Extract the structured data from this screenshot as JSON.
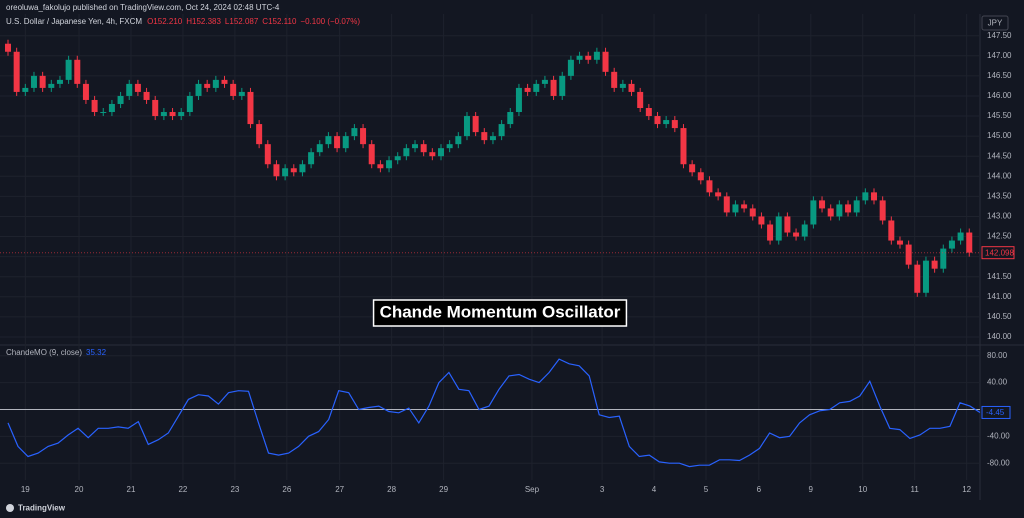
{
  "publisher_line": "oreoluwa_fakolujo published on TradingView.com, Oct 24, 2024 02:48 UTC-4",
  "currency": "JPY",
  "annotation": "Chande Momentum Oscillator",
  "brand": "TradingView",
  "chart_data": [
    {
      "type": "candlestick",
      "title": "U.S. Dollar / Japanese Yen, 4h, FXCM",
      "header_values": [
        "O152.210",
        "H152.383",
        "L152.087",
        "C152.110",
        "−0.100 (−0.07%)"
      ],
      "up_color": "#089981",
      "down_color": "#f23645",
      "open": [
        147.3,
        147.1,
        146.1,
        146.2,
        146.5,
        146.2,
        146.3,
        146.4,
        146.9,
        146.3,
        145.9,
        145.6,
        145.6,
        145.8,
        146.0,
        146.3,
        146.1,
        145.9,
        145.5,
        145.6,
        145.5,
        145.6,
        146.0,
        146.3,
        146.2,
        146.4,
        146.3,
        146.0,
        146.1,
        145.3,
        144.8,
        144.3,
        144.0,
        144.2,
        144.1,
        144.3,
        144.6,
        144.8,
        145.0,
        144.7,
        145.0,
        145.2,
        144.8,
        144.3,
        144.2,
        144.4,
        144.5,
        144.7,
        144.8,
        144.6,
        144.5,
        144.7,
        144.8,
        145.0,
        145.5,
        145.1,
        144.9,
        145.0,
        145.3,
        145.6,
        146.2,
        146.1,
        146.3,
        146.4,
        146.0,
        146.5,
        146.9,
        147.0,
        146.9,
        147.1,
        146.6,
        146.2,
        146.3,
        146.1,
        145.7,
        145.5,
        145.3,
        145.4,
        145.2,
        144.3,
        144.1,
        143.9,
        143.6,
        143.5,
        143.1,
        143.3,
        143.2,
        143.0,
        142.8,
        142.4,
        143.0,
        142.6,
        142.5,
        142.8,
        143.4,
        143.2,
        143.0,
        143.3,
        143.1,
        143.4,
        143.6,
        143.4,
        142.9,
        142.4,
        142.3,
        141.8,
        141.1,
        141.9,
        141.7,
        142.2,
        142.4,
        142.6
      ],
      "high": [
        147.4,
        147.2,
        146.3,
        146.6,
        146.6,
        146.4,
        146.5,
        147.0,
        147.0,
        146.4,
        146.0,
        145.7,
        145.9,
        146.1,
        146.4,
        146.4,
        146.2,
        146.0,
        145.7,
        145.7,
        145.7,
        146.1,
        146.4,
        146.4,
        146.5,
        146.5,
        146.4,
        146.2,
        146.2,
        145.4,
        144.9,
        144.4,
        144.3,
        144.3,
        144.4,
        144.7,
        144.9,
        145.1,
        145.1,
        145.1,
        145.3,
        145.3,
        144.9,
        144.4,
        144.5,
        144.6,
        144.8,
        144.9,
        144.9,
        144.7,
        144.8,
        144.9,
        145.1,
        145.6,
        145.6,
        145.2,
        145.1,
        145.4,
        145.7,
        146.3,
        146.3,
        146.4,
        146.5,
        146.5,
        146.6,
        147.0,
        147.1,
        147.1,
        147.2,
        147.2,
        146.7,
        146.4,
        146.4,
        146.2,
        145.8,
        145.6,
        145.5,
        145.5,
        145.3,
        144.4,
        144.2,
        144.0,
        143.7,
        143.6,
        143.4,
        143.4,
        143.3,
        143.1,
        142.9,
        143.1,
        143.1,
        142.7,
        142.9,
        143.5,
        143.5,
        143.3,
        143.4,
        143.4,
        143.5,
        143.7,
        143.7,
        143.5,
        143.0,
        142.5,
        142.4,
        141.9,
        142.0,
        142.0,
        142.3,
        142.5,
        142.7,
        142.7
      ],
      "low": [
        147.0,
        146.0,
        146.0,
        146.1,
        146.1,
        146.1,
        146.2,
        146.3,
        146.2,
        145.8,
        145.5,
        145.5,
        145.5,
        145.7,
        145.9,
        146.0,
        145.8,
        145.4,
        145.4,
        145.4,
        145.4,
        145.5,
        145.9,
        146.1,
        146.1,
        146.2,
        145.9,
        145.9,
        145.2,
        144.7,
        144.2,
        143.9,
        143.9,
        144.0,
        144.0,
        144.2,
        144.5,
        144.7,
        144.6,
        144.6,
        144.9,
        144.7,
        144.2,
        144.1,
        144.1,
        144.3,
        144.4,
        144.6,
        144.5,
        144.4,
        144.4,
        144.6,
        144.7,
        144.9,
        145.0,
        144.8,
        144.8,
        144.9,
        145.2,
        145.5,
        146.0,
        146.0,
        146.2,
        145.9,
        145.9,
        146.4,
        146.8,
        146.8,
        146.8,
        146.5,
        146.1,
        146.1,
        146.0,
        145.6,
        145.4,
        145.2,
        145.2,
        145.1,
        144.2,
        144.0,
        143.8,
        143.5,
        143.4,
        143.0,
        143.0,
        143.1,
        142.9,
        142.7,
        142.3,
        142.3,
        142.5,
        142.4,
        142.4,
        142.7,
        143.1,
        142.9,
        142.9,
        143.0,
        143.0,
        143.3,
        143.3,
        142.8,
        142.3,
        142.2,
        141.7,
        141.0,
        141.0,
        141.6,
        141.6,
        142.1,
        142.3,
        142.0
      ],
      "close": [
        147.1,
        146.1,
        146.2,
        146.5,
        146.2,
        146.3,
        146.4,
        146.9,
        146.3,
        145.9,
        145.6,
        145.6,
        145.8,
        146.0,
        146.3,
        146.1,
        145.9,
        145.5,
        145.6,
        145.5,
        145.6,
        146.0,
        146.3,
        146.2,
        146.4,
        146.3,
        146.0,
        146.1,
        145.3,
        144.8,
        144.3,
        144.0,
        144.2,
        144.1,
        144.3,
        144.6,
        144.8,
        145.0,
        144.7,
        145.0,
        145.2,
        144.8,
        144.3,
        144.2,
        144.4,
        144.5,
        144.7,
        144.8,
        144.6,
        144.5,
        144.7,
        144.8,
        145.0,
        145.5,
        145.1,
        144.9,
        145.0,
        145.3,
        145.6,
        146.2,
        146.1,
        146.3,
        146.4,
        146.0,
        146.5,
        146.9,
        147.0,
        146.9,
        147.1,
        146.6,
        146.2,
        146.3,
        146.1,
        145.7,
        145.5,
        145.3,
        145.4,
        145.2,
        144.3,
        144.1,
        143.9,
        143.6,
        143.5,
        143.1,
        143.3,
        143.2,
        143.0,
        142.8,
        142.4,
        143.0,
        142.6,
        142.5,
        142.8,
        143.4,
        143.2,
        143.0,
        143.3,
        143.1,
        143.4,
        143.6,
        143.4,
        142.9,
        142.4,
        142.3,
        141.8,
        141.1,
        141.9,
        141.7,
        142.2,
        142.4,
        142.6,
        142.1
      ],
      "ylim": [
        139.8,
        148.04
      ],
      "yticks": [
        {
          "value": 140,
          "label": "140.00"
        },
        {
          "value": 140.5,
          "label": "140.50"
        },
        {
          "value": 141,
          "label": "141.00"
        },
        {
          "value": 141.5,
          "label": "141.50"
        },
        {
          "value": 142,
          "label": "142.00"
        },
        {
          "value": 142.5,
          "label": "142.50"
        },
        {
          "value": 143,
          "label": "143.00"
        },
        {
          "value": 143.5,
          "label": "143.50"
        },
        {
          "value": 144,
          "label": "144.00"
        },
        {
          "value": 144.5,
          "label": "144.50"
        },
        {
          "value": 145,
          "label": "145.00"
        },
        {
          "value": 145.5,
          "label": "145.50"
        },
        {
          "value": 146,
          "label": "146.00"
        },
        {
          "value": 146.5,
          "label": "146.50"
        },
        {
          "value": 147,
          "label": "147.00"
        },
        {
          "value": 147.5,
          "label": "147.50"
        }
      ],
      "xticks": [
        {
          "value": 2,
          "label": "19"
        },
        {
          "value": 8.2,
          "label": "20"
        },
        {
          "value": 14.2,
          "label": "21"
        },
        {
          "value": 20.2,
          "label": "22"
        },
        {
          "value": 26.2,
          "label": "23"
        },
        {
          "value": 32.2,
          "label": "26"
        },
        {
          "value": 38.3,
          "label": "27"
        },
        {
          "value": 44.3,
          "label": "28"
        },
        {
          "value": 50.3,
          "label": "29"
        },
        {
          "value": 60.5,
          "label": "Sep"
        },
        {
          "value": 68.6,
          "label": "3"
        },
        {
          "value": 74.6,
          "label": "4"
        },
        {
          "value": 80.6,
          "label": "5"
        },
        {
          "value": 86.7,
          "label": "6"
        },
        {
          "value": 92.7,
          "label": "9"
        },
        {
          "value": 98.7,
          "label": "10"
        },
        {
          "value": 104.7,
          "label": "11"
        },
        {
          "value": 110.7,
          "label": "12"
        }
      ],
      "last_price": 142.098
    },
    {
      "type": "line",
      "name": "ChandeMO (9, close)",
      "indicator_value": 35.32,
      "color": "#2962ff",
      "values": [
        -20,
        -55,
        -70,
        -65,
        -55,
        -50,
        -38,
        -28,
        -42,
        -28,
        -28,
        -26,
        -28,
        -18,
        -52,
        -45,
        -35,
        -10,
        15,
        22,
        20,
        8,
        25,
        28,
        27,
        -20,
        -65,
        -68,
        -65,
        -55,
        -40,
        -33,
        -15,
        28,
        25,
        0,
        3,
        5,
        -3,
        -5,
        2,
        -20,
        5,
        40,
        55,
        30,
        28,
        0,
        5,
        30,
        50,
        52,
        45,
        40,
        55,
        75,
        68,
        65,
        50,
        -8,
        -12,
        -10,
        -55,
        -70,
        -68,
        -78,
        -80,
        -80,
        -85,
        -83,
        -83,
        -75,
        -75,
        -76,
        -68,
        -58,
        -35,
        -42,
        -40,
        -20,
        -8,
        -2,
        0,
        10,
        12,
        20,
        42,
        5,
        -28,
        -30,
        -43,
        -38,
        -28,
        -28,
        -25,
        10,
        5,
        -4.45
      ],
      "hline": 0,
      "ylim": [
        -105,
        93
      ],
      "yticks": [
        {
          "value": 80,
          "label": "80.00"
        },
        {
          "value": 40,
          "label": "40.00"
        },
        {
          "value": -40,
          "label": "-40.00"
        },
        {
          "value": -80,
          "label": "-80.00"
        }
      ],
      "last_value": -4.45
    }
  ]
}
